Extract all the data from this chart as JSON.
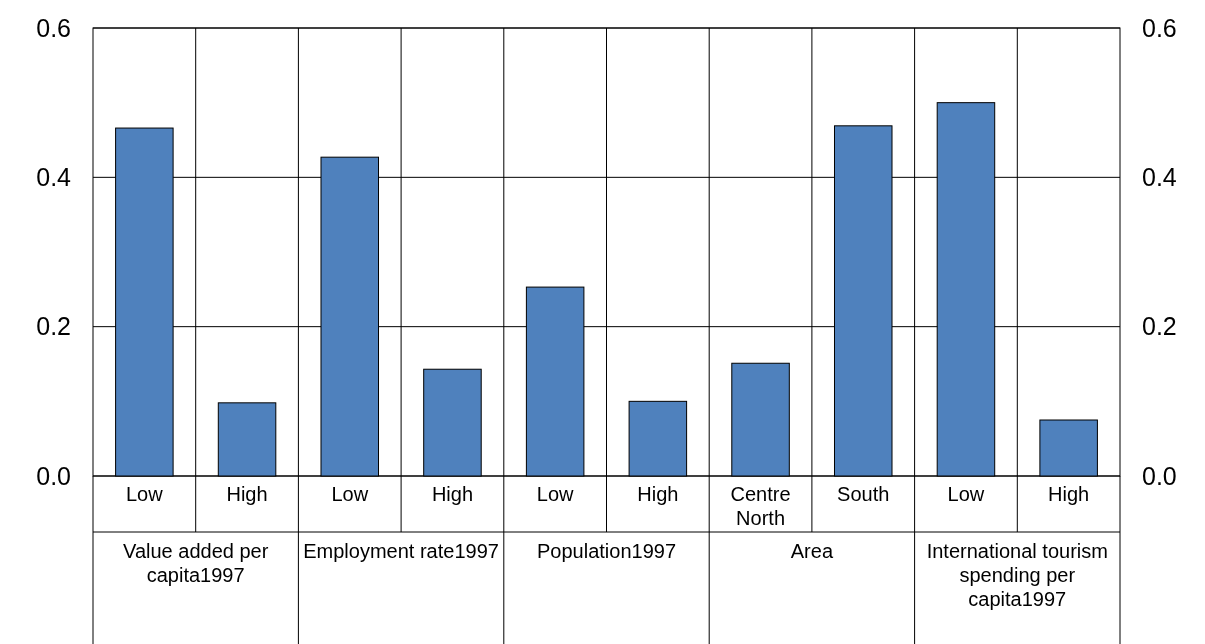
{
  "chart_data": {
    "type": "bar",
    "categories": [
      "Low",
      "High",
      "Low",
      "High",
      "Low",
      "High",
      "Centre North",
      "South",
      "Low",
      "High"
    ],
    "values": [
      0.466,
      0.098,
      0.427,
      0.143,
      0.253,
      0.1,
      0.151,
      0.469,
      0.5,
      0.075
    ],
    "color": "#4f81bd",
    "annotations": [
      "Value added per capita1997",
      "Employment rate1997",
      "Population1997",
      "Area",
      "International tourism spending per capita1997"
    ],
    "ylim": [
      0,
      0.6
    ],
    "yticks": [
      {
        "value": 0,
        "label": "0.0"
      },
      {
        "value": 0.2,
        "label": "0.2"
      },
      {
        "value": 0.4,
        "label": "0.4"
      },
      {
        "value": 0.6,
        "label": "0.6"
      }
    ],
    "y2lim": [
      0,
      0.6
    ],
    "y2ticks": [
      {
        "value": 0,
        "label": "0.0"
      },
      {
        "value": 0.2,
        "label": "0.2"
      },
      {
        "value": 0.4,
        "label": "0.4"
      },
      {
        "value": 0.6,
        "label": "0.6"
      }
    ],
    "grid": "y"
  }
}
